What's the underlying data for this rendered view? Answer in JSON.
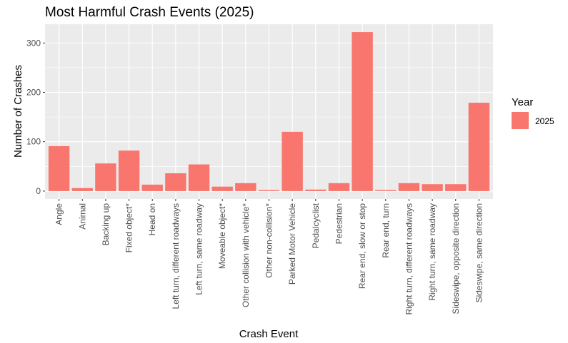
{
  "chart_data": {
    "type": "bar",
    "title": "Most Harmful Crash Events (2025)",
    "xlabel": "Crash Event",
    "ylabel": "Number of Crashes",
    "ylim": [
      -16,
      338
    ],
    "yticks": [
      0,
      100,
      200,
      300
    ],
    "grid": true,
    "legend": {
      "title": "Year",
      "placement": "right",
      "entries": [
        {
          "label": "2025",
          "color": "#F8766D"
        }
      ]
    },
    "categories": [
      "Angle",
      "Animal",
      "Backing up",
      "Fixed object*",
      "Head on",
      "Left turn, different roadways",
      "Left turn, same roadway",
      "Moveable object*",
      "Other collision with vehicle*",
      "Other non-collision*",
      "Parked Motor Vehicle",
      "Pedalcyclist",
      "Pedestrian",
      "Rear end, slow or stop",
      "Rear end, turn",
      "Right turn, different roadways",
      "Right turn, same roadway",
      "Sideswipe, opposite direction",
      "Sideswipe, same direction"
    ],
    "series": [
      {
        "name": "2025",
        "color": "#F8766D",
        "values": [
          91,
          6,
          56,
          82,
          13,
          36,
          54,
          9,
          16,
          2,
          120,
          3,
          16,
          322,
          2,
          16,
          14,
          14,
          179
        ]
      }
    ]
  },
  "colors": {
    "panel": "#EBEBEB",
    "grid": "#FFFFFF",
    "bar": "#F8766D",
    "tick": "#333333"
  }
}
